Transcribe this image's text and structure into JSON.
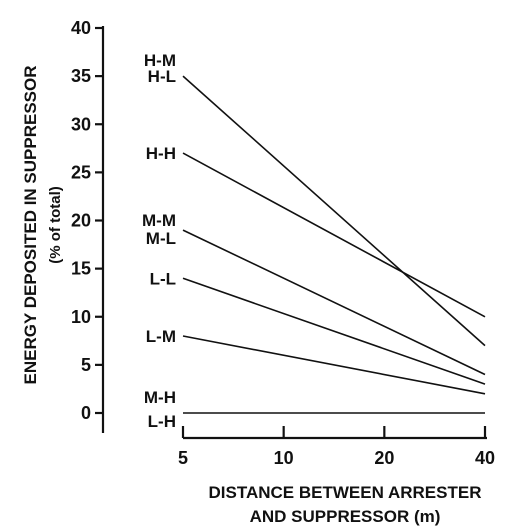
{
  "chart_data": {
    "type": "line",
    "ylabel": "ENERGY DEPOSITED IN SUPPRESSOR",
    "ylabel_sub": "(% of total)",
    "xlabel_line1": "DISTANCE BETWEEN ARRESTER",
    "xlabel_line2": "AND SUPPRESSOR (m)",
    "x_scale": "log",
    "xlim": [
      5,
      40
    ],
    "ylim": [
      0,
      40
    ],
    "x_ticks": [
      5,
      10,
      20,
      40
    ],
    "y_ticks": [
      0,
      5,
      10,
      15,
      20,
      25,
      30,
      35,
      40
    ],
    "grid": false,
    "series": [
      {
        "name": "H-M",
        "x": [
          5,
          40
        ],
        "y": [
          35,
          7
        ]
      },
      {
        "name": "H-L",
        "x": [
          5,
          40
        ],
        "y": [
          35,
          7
        ]
      },
      {
        "name": "H-H",
        "x": [
          5,
          40
        ],
        "y": [
          27,
          10
        ]
      },
      {
        "name": "M-M",
        "x": [
          5,
          40
        ],
        "y": [
          19,
          4
        ]
      },
      {
        "name": "M-L",
        "x": [
          5,
          40
        ],
        "y": [
          19,
          4
        ]
      },
      {
        "name": "L-L",
        "x": [
          5,
          40
        ],
        "y": [
          14,
          3
        ]
      },
      {
        "name": "L-M",
        "x": [
          5,
          40
        ],
        "y": [
          8,
          2
        ]
      },
      {
        "name": "M-H",
        "x": [
          5,
          40
        ],
        "y": [
          0,
          0
        ]
      },
      {
        "name": "L-H",
        "x": [
          5,
          40
        ],
        "y": [
          0,
          0
        ]
      }
    ]
  }
}
